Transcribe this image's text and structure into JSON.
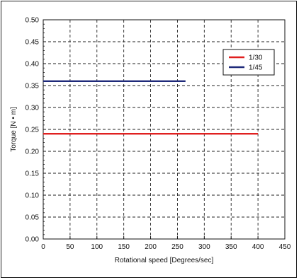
{
  "chart_data": {
    "type": "line",
    "title": "",
    "xlabel": "Rotational speed [Degrees/sec]",
    "ylabel": "Torque [N • m]",
    "xlim": [
      0,
      450
    ],
    "ylim": [
      0,
      0.5
    ],
    "x_ticks": [
      "0",
      "50",
      "100",
      "150",
      "200",
      "250",
      "300",
      "350",
      "400",
      "450"
    ],
    "y_ticks": [
      "0.00",
      "0.05",
      "0.10",
      "0.15",
      "0.20",
      "0.25",
      "0.30",
      "0.35",
      "0.40",
      "0.45",
      "0.50"
    ],
    "grid": true,
    "grid_style": "dashed",
    "legend_position": "top-right",
    "series": [
      {
        "name": "1/30",
        "color": "#e02020",
        "x": [
          0,
          400
        ],
        "y": [
          0.24,
          0.24
        ]
      },
      {
        "name": "1/45",
        "color": "#1f2a7a",
        "x": [
          0,
          265
        ],
        "y": [
          0.36,
          0.36
        ]
      }
    ]
  }
}
